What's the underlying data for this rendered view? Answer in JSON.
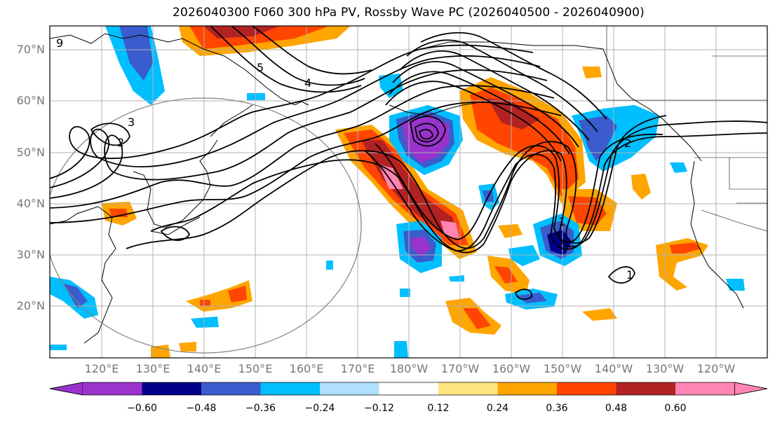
{
  "title": "2026040300 F060 300 hPa PV, Rossby Wave PC (2026040500 - 2026040900)",
  "latitude_labels": [
    "70°N",
    "60°N",
    "50°N",
    "40°N",
    "30°N",
    "20°N"
  ],
  "longitude_labels": [
    "120°E",
    "130°E",
    "140°E",
    "150°E",
    "160°E",
    "170°E",
    "180°W",
    "170°W",
    "160°W",
    "150°W",
    "140°W",
    "130°W",
    "120°W"
  ],
  "contour_labels": [
    "3",
    "2",
    "5",
    "4",
    "9",
    "2",
    "1",
    "1"
  ],
  "colorbar": {
    "tick_labels": [
      "−0.60",
      "−0.48",
      "−0.36",
      "−0.24",
      "−0.12",
      "0.12",
      "0.24",
      "0.36",
      "0.48",
      "0.60"
    ],
    "colors": [
      "#9933cc",
      "#00008b",
      "#3a5ccc",
      "#00bfff",
      "#b0e0ff",
      "#ffffff",
      "#ffe680",
      "#ffa500",
      "#ff4500",
      "#b22222",
      "#ff85b3"
    ]
  }
}
